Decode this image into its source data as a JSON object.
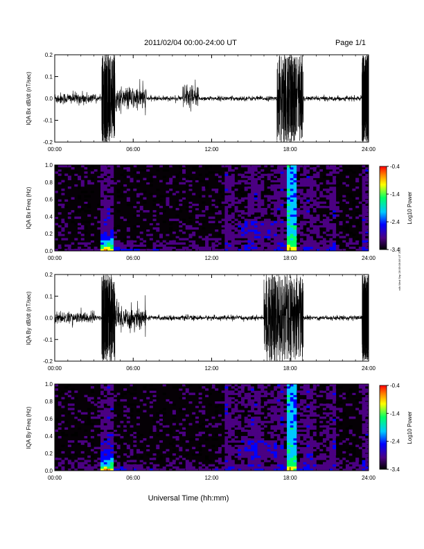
{
  "page": {
    "title": "2011/02/04  00:00-24:00 UT",
    "page_label": "Page 1/1",
    "side_note": "rdh Wed Sep 28 09:06:06 UT 2016",
    "xlabel": "Universal Time (hh:mm)"
  },
  "colors": {
    "background": "#ffffff",
    "trace": "#000000",
    "spectrogram_floor": "#050005",
    "colorbar_stops": [
      "#000000",
      "#4b0082",
      "#0000ff",
      "#00c8ff",
      "#00ff66",
      "#ffff00",
      "#ff8000",
      "#ff0000"
    ]
  },
  "chart_data": [
    {
      "type": "line",
      "ylabel": "IQA Bx dB/dt (nT/sec)",
      "xlim": [
        0,
        24
      ],
      "ylim": [
        -0.2,
        0.2
      ],
      "xticks": [
        "00:00",
        "06:00",
        "12:00",
        "18:00",
        "24:00"
      ],
      "yticks": [
        "0.2",
        "0.1",
        "0.0",
        "-0.1",
        "-0.2"
      ],
      "activity": [
        {
          "x": [
            0,
            3.2
          ],
          "amplitude": 0.03
        },
        {
          "x": [
            3.6,
            4.6
          ],
          "amplitude": 0.2
        },
        {
          "x": [
            4.6,
            7.0
          ],
          "amplitude": 0.06
        },
        {
          "x": [
            9.8,
            11.0
          ],
          "amplitude": 0.07
        },
        {
          "x": [
            17.0,
            19.0
          ],
          "amplitude": 0.2
        },
        {
          "x": [
            23.5,
            24.0
          ],
          "amplitude": 0.15
        }
      ]
    },
    {
      "type": "heatmap",
      "ylabel": "IQA Bx Freq (Hz)",
      "xlim": [
        0,
        24
      ],
      "ylim": [
        0,
        1.0
      ],
      "xticks": [
        "00:00",
        "06:00",
        "12:00",
        "18:00",
        "24:00"
      ],
      "yticks": [
        "1.0",
        "0.8",
        "0.6",
        "0.4",
        "0.2",
        "0.0"
      ],
      "colorbar": {
        "label": "Log10 Power",
        "range": [
          -3.4,
          -0.4
        ],
        "ticks": [
          "-0.4",
          "-1.4",
          "-2.4",
          "-3.4"
        ]
      }
    },
    {
      "type": "line",
      "ylabel": "IQA By dB/dt (nT/sec)",
      "xlim": [
        0,
        24
      ],
      "ylim": [
        -0.2,
        0.2
      ],
      "xticks": [
        "00:00",
        "06:00",
        "12:00",
        "18:00",
        "24:00"
      ],
      "yticks": [
        "0.2",
        "0.1",
        "0.0",
        "-0.1",
        "-0.2"
      ],
      "activity": [
        {
          "x": [
            0,
            3.2
          ],
          "amplitude": 0.03
        },
        {
          "x": [
            3.6,
            4.6
          ],
          "amplitude": 0.2
        },
        {
          "x": [
            4.6,
            7.0
          ],
          "amplitude": 0.07
        },
        {
          "x": [
            16.0,
            19.0
          ],
          "amplitude": 0.2
        },
        {
          "x": [
            23.5,
            24.0
          ],
          "amplitude": 0.15
        }
      ]
    },
    {
      "type": "heatmap",
      "ylabel": "IQA By Freq (Hz)",
      "xlim": [
        0,
        24
      ],
      "ylim": [
        0,
        1.0
      ],
      "xticks": [
        "00:00",
        "06:00",
        "12:00",
        "18:00",
        "24:00"
      ],
      "yticks": [
        "1.0",
        "0.8",
        "0.6",
        "0.4",
        "0.2",
        "0.0"
      ],
      "colorbar": {
        "label": "Log10 Power",
        "range": [
          -3.4,
          -0.4
        ],
        "ticks": [
          "-0.4",
          "-1.4",
          "-2.4",
          "-3.4"
        ]
      }
    }
  ]
}
